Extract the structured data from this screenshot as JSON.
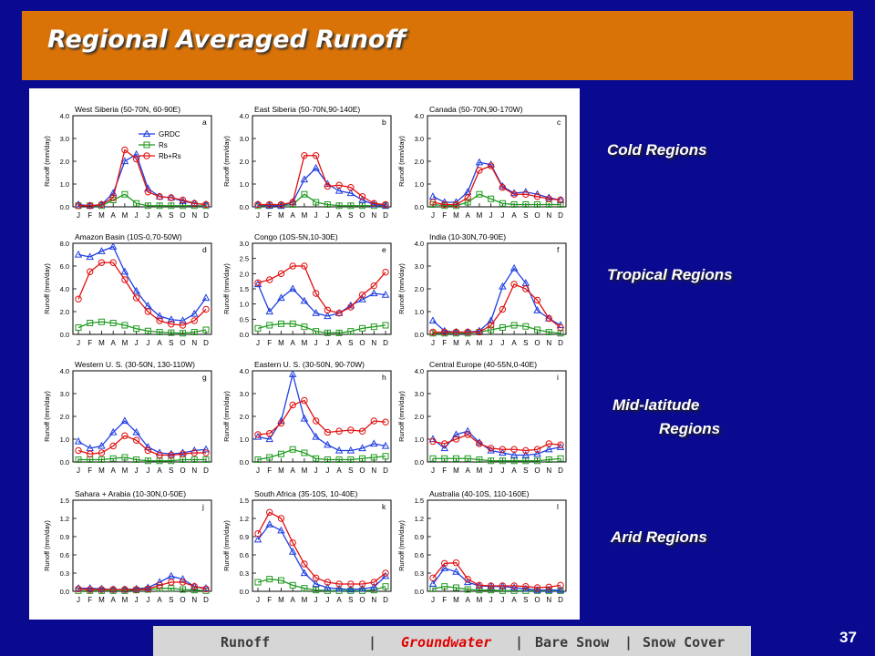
{
  "title": "Regional Averaged Runoff",
  "region_labels": {
    "cold": "Cold Regions",
    "tropical": "Tropical Regions",
    "midlat_line1": "Mid-latitude",
    "midlat_line2": "Regions",
    "arid": "Arid Regions"
  },
  "nav": {
    "runoff": "Runoff",
    "sep1": "|",
    "groundwater": "Groundwater",
    "sep2": "|",
    "bare_snow": "Bare Snow",
    "sep3": "|",
    "snow_cover": "Snow Cover"
  },
  "page_number": "37",
  "colors": {
    "grdc": "#1f3fe0",
    "rs": "#1f9a1f",
    "rbrs": "#e01010",
    "title_bg": "#d97308",
    "slide_bg": "#0a0a90"
  },
  "chart_data": [
    {
      "type": "line",
      "title": "West Siberia (50-70N, 60-90E)",
      "letter": "a",
      "ylabel": "Runoff (mm/day)",
      "ylim": [
        0,
        4
      ],
      "yticks": [
        "0.0",
        "1.0",
        "2.0",
        "3.0",
        "4.0"
      ],
      "categories": [
        "J",
        "F",
        "M",
        "A",
        "M",
        "J",
        "J",
        "A",
        "S",
        "O",
        "N",
        "D"
      ],
      "legend": "top-left",
      "series": [
        {
          "name": "GRDC",
          "values": [
            0.1,
            0.05,
            0.1,
            0.6,
            2.0,
            2.3,
            0.8,
            0.45,
            0.4,
            0.25,
            0.15,
            0.1
          ]
        },
        {
          "name": "Rs",
          "values": [
            0.05,
            0.05,
            0.05,
            0.3,
            0.55,
            0.15,
            0.05,
            0.05,
            0.05,
            0.05,
            0.05,
            0.05
          ]
        },
        {
          "name": "Rb+Rs",
          "values": [
            0.05,
            0.05,
            0.1,
            0.4,
            2.5,
            2.1,
            0.65,
            0.45,
            0.4,
            0.3,
            0.15,
            0.1
          ]
        }
      ]
    },
    {
      "type": "line",
      "title": "East Siberia (50-70N,90-140E)",
      "letter": "b",
      "ylabel": "Runoff (mm/day)",
      "ylim": [
        0,
        4
      ],
      "yticks": [
        "0.0",
        "1.0",
        "2.0",
        "3.0",
        "4.0"
      ],
      "categories": [
        "J",
        "F",
        "M",
        "A",
        "M",
        "J",
        "J",
        "A",
        "S",
        "O",
        "N",
        "D"
      ],
      "series": [
        {
          "name": "GRDC",
          "values": [
            0.1,
            0.05,
            0.05,
            0.2,
            1.2,
            1.7,
            1.0,
            0.7,
            0.6,
            0.3,
            0.1,
            0.05
          ]
        },
        {
          "name": "Rs",
          "values": [
            0.05,
            0.05,
            0.05,
            0.1,
            0.55,
            0.2,
            0.1,
            0.05,
            0.05,
            0.05,
            0.05,
            0.05
          ]
        },
        {
          "name": "Rb+Rs",
          "values": [
            0.1,
            0.1,
            0.1,
            0.2,
            2.25,
            2.25,
            0.9,
            0.95,
            0.85,
            0.45,
            0.15,
            0.1
          ]
        }
      ]
    },
    {
      "type": "line",
      "title": "Canada (50-70N,90-170W)",
      "letter": "c",
      "ylabel": "Runoff (mm/day)",
      "ylim": [
        0,
        4
      ],
      "yticks": [
        "0.0",
        "1.0",
        "2.0",
        "3.0",
        "4.0"
      ],
      "categories": [
        "J",
        "F",
        "M",
        "A",
        "M",
        "J",
        "J",
        "A",
        "S",
        "O",
        "N",
        "D"
      ],
      "series": [
        {
          "name": "GRDC",
          "values": [
            0.45,
            0.2,
            0.2,
            0.65,
            1.95,
            1.85,
            0.9,
            0.6,
            0.65,
            0.55,
            0.4,
            0.3
          ]
        },
        {
          "name": "Rs",
          "values": [
            0.1,
            0.05,
            0.05,
            0.2,
            0.55,
            0.35,
            0.15,
            0.1,
            0.1,
            0.1,
            0.1,
            0.1
          ]
        },
        {
          "name": "Rb+Rs",
          "values": [
            0.2,
            0.1,
            0.1,
            0.4,
            1.6,
            1.8,
            0.85,
            0.55,
            0.55,
            0.45,
            0.35,
            0.3
          ]
        }
      ]
    },
    {
      "type": "line",
      "title": "Amazon Basin (10S-0,70-50W)",
      "letter": "d",
      "ylabel": "Runoff (mm/day)",
      "ylim": [
        0,
        8
      ],
      "yticks": [
        "0.0",
        "2.0",
        "4.0",
        "6.0",
        "8.0"
      ],
      "categories": [
        "J",
        "F",
        "M",
        "A",
        "M",
        "J",
        "J",
        "A",
        "S",
        "O",
        "N",
        "D"
      ],
      "series": [
        {
          "name": "GRDC",
          "values": [
            7.0,
            6.8,
            7.3,
            7.7,
            5.5,
            3.8,
            2.5,
            1.6,
            1.3,
            1.2,
            1.8,
            3.2
          ]
        },
        {
          "name": "Rs",
          "values": [
            0.6,
            1.0,
            1.1,
            1.0,
            0.8,
            0.5,
            0.3,
            0.2,
            0.15,
            0.1,
            0.2,
            0.4
          ]
        },
        {
          "name": "Rb+Rs",
          "values": [
            3.1,
            5.5,
            6.3,
            6.3,
            4.8,
            3.2,
            2.0,
            1.2,
            0.9,
            0.8,
            1.2,
            2.2
          ]
        }
      ]
    },
    {
      "type": "line",
      "title": "Congo (10S-5N,10-30E)",
      "letter": "e",
      "ylabel": "Runoff (mm/day)",
      "ylim": [
        0,
        3
      ],
      "yticks": [
        "0.0",
        "0.5",
        "1.0",
        "1.5",
        "2.0",
        "2.5",
        "3.0"
      ],
      "categories": [
        "J",
        "F",
        "M",
        "A",
        "M",
        "J",
        "J",
        "A",
        "S",
        "O",
        "N",
        "D"
      ],
      "series": [
        {
          "name": "GRDC",
          "values": [
            1.65,
            0.75,
            1.2,
            1.5,
            1.1,
            0.7,
            0.6,
            0.7,
            0.95,
            1.15,
            1.35,
            1.3
          ]
        },
        {
          "name": "Rs",
          "values": [
            0.2,
            0.3,
            0.35,
            0.35,
            0.25,
            0.1,
            0.05,
            0.05,
            0.1,
            0.2,
            0.25,
            0.3
          ]
        },
        {
          "name": "Rb+Rs",
          "values": [
            1.7,
            1.8,
            2.0,
            2.25,
            2.25,
            1.35,
            0.8,
            0.7,
            0.9,
            1.3,
            1.6,
            2.05
          ]
        }
      ]
    },
    {
      "type": "line",
      "title": "India (10-30N,70-90E)",
      "letter": "f",
      "ylabel": "Runoff (mm/day)",
      "ylim": [
        0,
        4
      ],
      "yticks": [
        "0.0",
        "1.0",
        "2.0",
        "3.0",
        "4.0"
      ],
      "categories": [
        "J",
        "F",
        "M",
        "A",
        "M",
        "J",
        "J",
        "A",
        "S",
        "O",
        "N",
        "D"
      ],
      "series": [
        {
          "name": "GRDC",
          "values": [
            0.6,
            0.15,
            0.1,
            0.1,
            0.15,
            0.6,
            2.1,
            2.9,
            2.25,
            1.05,
            0.7,
            0.4
          ]
        },
        {
          "name": "Rs",
          "values": [
            0.05,
            0.05,
            0.05,
            0.05,
            0.1,
            0.2,
            0.3,
            0.4,
            0.35,
            0.2,
            0.1,
            0.05
          ]
        },
        {
          "name": "Rb+Rs",
          "values": [
            0.1,
            0.1,
            0.1,
            0.1,
            0.1,
            0.4,
            1.1,
            2.2,
            2.0,
            1.5,
            0.7,
            0.3
          ]
        }
      ]
    },
    {
      "type": "line",
      "title": "Western U. S. (30-50N, 130-110W)",
      "letter": "g",
      "ylabel": "Runoff (mm/day)",
      "ylim": [
        0,
        4
      ],
      "yticks": [
        "0.0",
        "1.0",
        "2.0",
        "3.0",
        "4.0"
      ],
      "categories": [
        "J",
        "F",
        "M",
        "A",
        "M",
        "J",
        "J",
        "A",
        "S",
        "O",
        "N",
        "D"
      ],
      "series": [
        {
          "name": "GRDC",
          "values": [
            0.9,
            0.6,
            0.7,
            1.3,
            1.8,
            1.3,
            0.65,
            0.4,
            0.35,
            0.4,
            0.5,
            0.55
          ]
        },
        {
          "name": "Rs",
          "values": [
            0.1,
            0.1,
            0.1,
            0.15,
            0.2,
            0.1,
            0.05,
            0.05,
            0.05,
            0.1,
            0.1,
            0.1
          ]
        },
        {
          "name": "Rb+Rs",
          "values": [
            0.5,
            0.35,
            0.4,
            0.7,
            1.15,
            0.95,
            0.5,
            0.3,
            0.3,
            0.35,
            0.4,
            0.4
          ]
        }
      ]
    },
    {
      "type": "line",
      "title": "Eastern U. S. (30-50N, 90-70W)",
      "letter": "h",
      "ylabel": "Runoff (mm/day)",
      "ylim": [
        0,
        4
      ],
      "yticks": [
        "0.0",
        "1.0",
        "2.0",
        "3.0",
        "4.0"
      ],
      "categories": [
        "J",
        "F",
        "M",
        "A",
        "M",
        "J",
        "J",
        "A",
        "S",
        "O",
        "N",
        "D"
      ],
      "series": [
        {
          "name": "GRDC",
          "values": [
            1.1,
            1.0,
            1.8,
            3.85,
            1.9,
            1.1,
            0.75,
            0.5,
            0.5,
            0.6,
            0.8,
            0.7
          ]
        },
        {
          "name": "Rs",
          "values": [
            0.1,
            0.2,
            0.35,
            0.55,
            0.4,
            0.15,
            0.1,
            0.1,
            0.1,
            0.15,
            0.2,
            0.25
          ]
        },
        {
          "name": "Rb+Rs",
          "values": [
            1.2,
            1.25,
            1.7,
            2.5,
            2.7,
            1.8,
            1.3,
            1.35,
            1.4,
            1.35,
            1.8,
            1.75
          ]
        }
      ]
    },
    {
      "type": "line",
      "title": "Central Europe (40-55N,0-40E)",
      "letter": "i",
      "ylabel": "Runoff (mm/day)",
      "ylim": [
        0,
        4
      ],
      "yticks": [
        "0.0",
        "1.0",
        "2.0",
        "3.0",
        "4.0"
      ],
      "categories": [
        "J",
        "F",
        "M",
        "A",
        "M",
        "J",
        "J",
        "A",
        "S",
        "O",
        "N",
        "D"
      ],
      "series": [
        {
          "name": "GRDC",
          "values": [
            1.0,
            0.6,
            1.2,
            1.35,
            0.85,
            0.5,
            0.4,
            0.3,
            0.3,
            0.35,
            0.55,
            0.65
          ]
        },
        {
          "name": "Rs",
          "values": [
            0.15,
            0.15,
            0.15,
            0.15,
            0.1,
            0.05,
            0.05,
            0.05,
            0.05,
            0.05,
            0.1,
            0.15
          ]
        },
        {
          "name": "Rb+Rs",
          "values": [
            0.9,
            0.8,
            1.0,
            1.2,
            0.8,
            0.6,
            0.55,
            0.55,
            0.5,
            0.55,
            0.8,
            0.75
          ]
        }
      ]
    },
    {
      "type": "line",
      "title": "Sahara + Arabia (10-30N,0-50E)",
      "letter": "j",
      "ylabel": "Runoff (mm/day)",
      "ylim": [
        0,
        1.5
      ],
      "yticks": [
        "0.0",
        "0.3",
        "0.6",
        "0.9",
        "1.2",
        "1.5"
      ],
      "categories": [
        "J",
        "F",
        "M",
        "A",
        "M",
        "J",
        "J",
        "A",
        "S",
        "O",
        "N",
        "D"
      ],
      "series": [
        {
          "name": "GRDC",
          "values": [
            0.05,
            0.05,
            0.04,
            0.03,
            0.03,
            0.04,
            0.06,
            0.15,
            0.25,
            0.2,
            0.08,
            0.05
          ]
        },
        {
          "name": "Rs",
          "values": [
            0.01,
            0.01,
            0.01,
            0.01,
            0.01,
            0.02,
            0.03,
            0.05,
            0.05,
            0.03,
            0.02,
            0.01
          ]
        },
        {
          "name": "Rb+Rs",
          "values": [
            0.04,
            0.03,
            0.03,
            0.03,
            0.03,
            0.03,
            0.04,
            0.1,
            0.15,
            0.15,
            0.08,
            0.04
          ]
        }
      ]
    },
    {
      "type": "line",
      "title": "South Africa (35-10S, 10-40E)",
      "letter": "k",
      "ylabel": "Runoff (mm/day)",
      "ylim": [
        0,
        1.5
      ],
      "yticks": [
        "0.0",
        "0.3",
        "0.6",
        "0.9",
        "1.2",
        "1.5"
      ],
      "categories": [
        "J",
        "F",
        "M",
        "A",
        "M",
        "J",
        "J",
        "A",
        "S",
        "O",
        "N",
        "D"
      ],
      "series": [
        {
          "name": "GRDC",
          "values": [
            0.85,
            1.1,
            1.0,
            0.65,
            0.3,
            0.12,
            0.06,
            0.04,
            0.03,
            0.04,
            0.07,
            0.25
          ]
        },
        {
          "name": "Rs",
          "values": [
            0.15,
            0.2,
            0.18,
            0.1,
            0.05,
            0.02,
            0.01,
            0.01,
            0.01,
            0.01,
            0.02,
            0.08
          ]
        },
        {
          "name": "Rb+Rs",
          "values": [
            0.95,
            1.3,
            1.2,
            0.8,
            0.45,
            0.22,
            0.15,
            0.12,
            0.12,
            0.12,
            0.15,
            0.3
          ]
        }
      ]
    },
    {
      "type": "line",
      "title": "Australia (40-10S, 110-160E)",
      "letter": "l",
      "ylabel": "Runoff (mm/day)",
      "ylim": [
        0,
        1.5
      ],
      "yticks": [
        "0.0",
        "0.3",
        "0.6",
        "0.9",
        "1.2",
        "1.5"
      ],
      "categories": [
        "J",
        "F",
        "M",
        "A",
        "M",
        "J",
        "J",
        "A",
        "S",
        "O",
        "N",
        "D"
      ],
      "series": [
        {
          "name": "GRDC",
          "values": [
            0.12,
            0.38,
            0.32,
            0.15,
            0.09,
            0.08,
            0.08,
            0.06,
            0.04,
            0.02,
            0.02,
            0.02
          ]
        },
        {
          "name": "Rs",
          "values": [
            0.04,
            0.08,
            0.06,
            0.03,
            0.02,
            0.02,
            0.01,
            0.01,
            0.01,
            0.01,
            0.01,
            0.01
          ]
        },
        {
          "name": "Rb+Rs",
          "values": [
            0.22,
            0.46,
            0.47,
            0.2,
            0.1,
            0.09,
            0.09,
            0.09,
            0.08,
            0.06,
            0.07,
            0.1
          ]
        }
      ]
    }
  ]
}
